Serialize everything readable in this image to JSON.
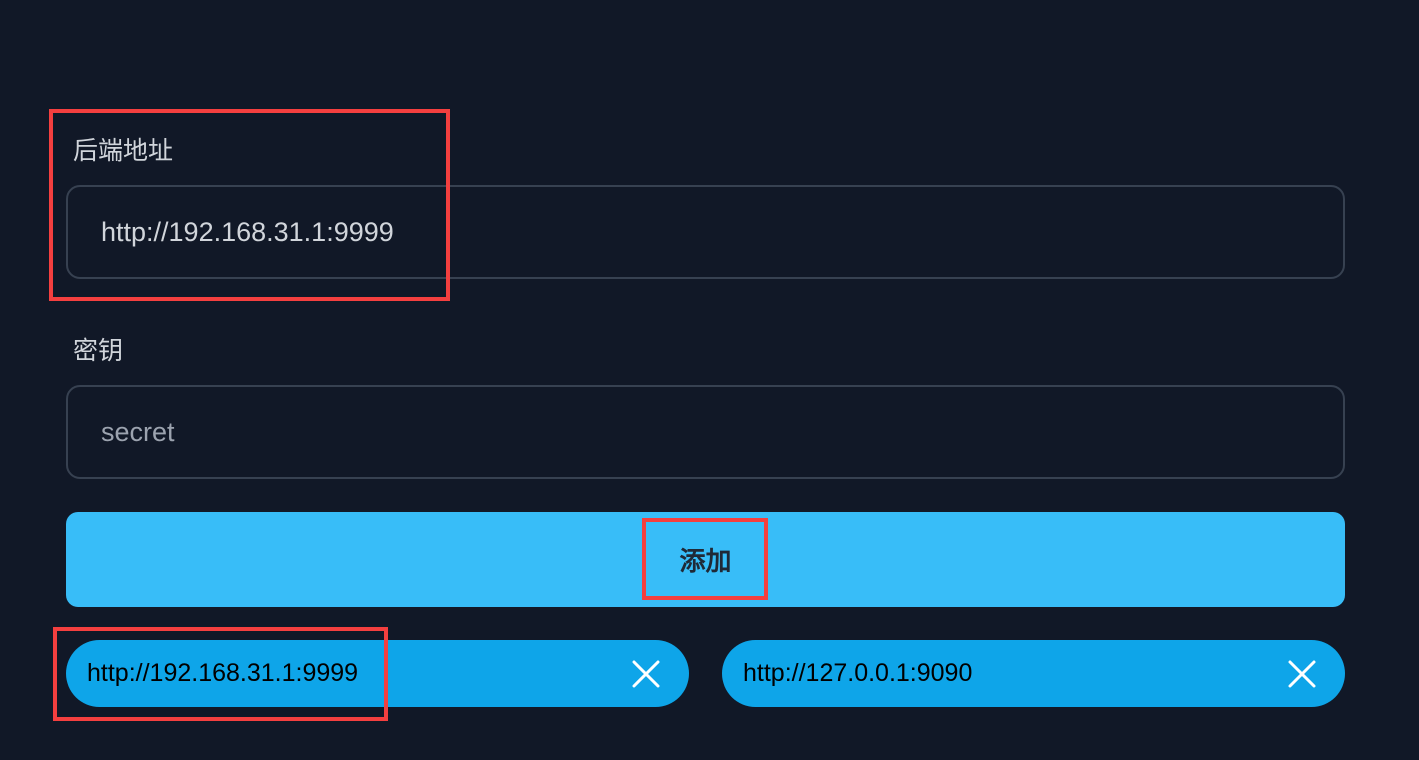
{
  "form": {
    "backend_label": "后端地址",
    "backend_value": "http://192.168.31.1:9999",
    "secret_label": "密钥",
    "secret_placeholder": "secret",
    "add_button": "添加"
  },
  "backends": [
    {
      "url": "http://192.168.31.1:9999",
      "close_icon": "close-icon"
    },
    {
      "url": "http://127.0.0.1:9090",
      "close_icon": "close-icon"
    }
  ],
  "colors": {
    "background": "#111827",
    "button": "#38bdf8",
    "chip": "#0ea5e9",
    "highlight": "#f43f3f"
  }
}
